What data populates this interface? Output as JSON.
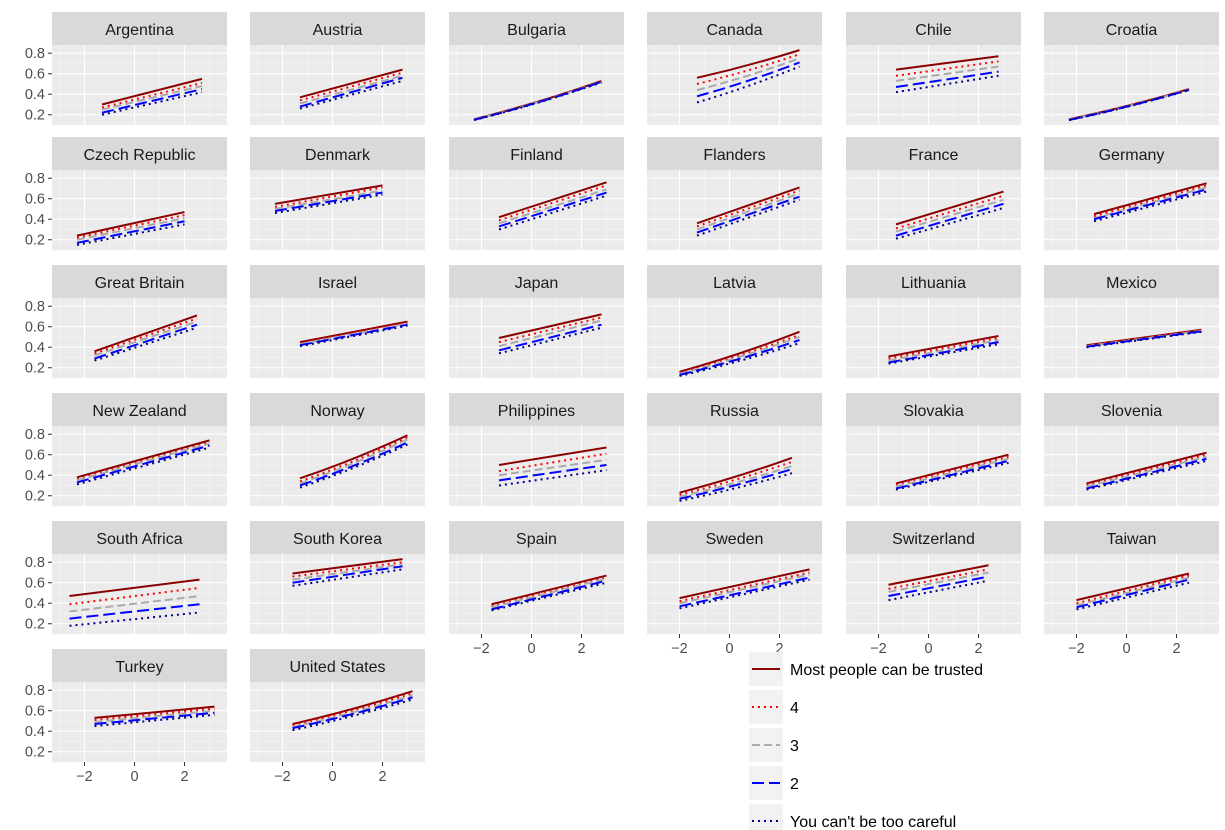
{
  "chart_data": {
    "type": "line",
    "facets": [
      "Argentina",
      "Austria",
      "Bulgaria",
      "Canada",
      "Chile",
      "Croatia",
      "Czech Republic",
      "Denmark",
      "Finland",
      "Flanders",
      "France",
      "Germany",
      "Great Britain",
      "Israel",
      "Japan",
      "Latvia",
      "Lithuania",
      "Mexico",
      "New Zealand",
      "Norway",
      "Philippines",
      "Russia",
      "Slovakia",
      "Slovenia",
      "South Africa",
      "South Korea",
      "Spain",
      "Sweden",
      "Switzerland",
      "Taiwan",
      "Turkey",
      "United States"
    ],
    "xlim": [
      -3.3,
      3.7
    ],
    "ylim": [
      0.1,
      0.88
    ],
    "x_ticks": [
      -2,
      0,
      2
    ],
    "x_tick_labels": [
      "−2",
      "0",
      "2"
    ],
    "y_ticks": [
      0.2,
      0.4,
      0.6,
      0.8
    ],
    "y_tick_labels": [
      "0.2",
      "0.4",
      "0.6",
      "0.8"
    ],
    "grid": true,
    "legend_position": "bottom-right",
    "series": [
      {
        "name": "Most people can be trusted",
        "color": "#8b0000",
        "dash": "solid"
      },
      {
        "name": "4",
        "color": "#ff0000",
        "dash": "dotted"
      },
      {
        "name": "3",
        "color": "#aaaaaa",
        "dash": "dashed"
      },
      {
        "name": "2",
        "color": "#0000ff",
        "dash": "longdash"
      },
      {
        "name": "You can't be too careful",
        "color": "#00008b",
        "dash": "dotted"
      }
    ],
    "panels": [
      {
        "facet": "Argentina",
        "x": [
          -1.3,
          2.7
        ],
        "lines": [
          [
            0.3,
            0.55
          ],
          [
            0.27,
            0.51
          ],
          [
            0.25,
            0.48
          ],
          [
            0.22,
            0.45
          ],
          [
            0.2,
            0.42
          ]
        ]
      },
      {
        "facet": "Austria",
        "x": [
          -1.3,
          2.8
        ],
        "lines": [
          [
            0.37,
            0.64
          ],
          [
            0.34,
            0.61
          ],
          [
            0.31,
            0.58
          ],
          [
            0.28,
            0.56
          ],
          [
            0.26,
            0.53
          ]
        ]
      },
      {
        "facet": "Bulgaria",
        "x": [
          -2.3,
          2.8
        ],
        "curve": true,
        "lines": [
          [
            0.155,
            0.53
          ],
          [
            0.153,
            0.525
          ],
          [
            0.152,
            0.522
          ],
          [
            0.15,
            0.52
          ],
          [
            0.148,
            0.515
          ]
        ]
      },
      {
        "facet": "Canada",
        "x": [
          -1.3,
          2.8
        ],
        "curve": true,
        "lines": [
          [
            0.56,
            0.83
          ],
          [
            0.5,
            0.79
          ],
          [
            0.44,
            0.75
          ],
          [
            0.38,
            0.71
          ],
          [
            0.32,
            0.67
          ]
        ]
      },
      {
        "facet": "Chile",
        "x": [
          -1.3,
          2.8
        ],
        "lines": [
          [
            0.64,
            0.77
          ],
          [
            0.58,
            0.72
          ],
          [
            0.53,
            0.67
          ],
          [
            0.47,
            0.62
          ],
          [
            0.42,
            0.58
          ]
        ]
      },
      {
        "facet": "Croatia",
        "x": [
          -2.3,
          2.5
        ],
        "curve": true,
        "lines": [
          [
            0.155,
            0.45
          ],
          [
            0.153,
            0.447
          ],
          [
            0.151,
            0.445
          ],
          [
            0.149,
            0.443
          ],
          [
            0.147,
            0.44
          ]
        ]
      },
      {
        "facet": "Czech Republic",
        "x": [
          -2.3,
          2.0
        ],
        "lines": [
          [
            0.24,
            0.47
          ],
          [
            0.22,
            0.44
          ],
          [
            0.2,
            0.41
          ],
          [
            0.17,
            0.38
          ],
          [
            0.15,
            0.35
          ]
        ]
      },
      {
        "facet": "Denmark",
        "x": [
          -2.3,
          2.0
        ],
        "lines": [
          [
            0.55,
            0.73
          ],
          [
            0.52,
            0.71
          ],
          [
            0.5,
            0.68
          ],
          [
            0.48,
            0.66
          ],
          [
            0.46,
            0.64
          ]
        ]
      },
      {
        "facet": "Finland",
        "x": [
          -1.3,
          3.0
        ],
        "lines": [
          [
            0.42,
            0.76
          ],
          [
            0.39,
            0.73
          ],
          [
            0.36,
            0.69
          ],
          [
            0.33,
            0.66
          ],
          [
            0.3,
            0.63
          ]
        ]
      },
      {
        "facet": "Flanders",
        "x": [
          -1.3,
          2.8
        ],
        "lines": [
          [
            0.36,
            0.71
          ],
          [
            0.33,
            0.68
          ],
          [
            0.3,
            0.65
          ],
          [
            0.27,
            0.62
          ],
          [
            0.24,
            0.59
          ]
        ]
      },
      {
        "facet": "France",
        "x": [
          -1.3,
          3.0
        ],
        "lines": [
          [
            0.35,
            0.67
          ],
          [
            0.31,
            0.63
          ],
          [
            0.28,
            0.59
          ],
          [
            0.24,
            0.55
          ],
          [
            0.21,
            0.51
          ]
        ]
      },
      {
        "facet": "Germany",
        "x": [
          -1.3,
          3.2
        ],
        "lines": [
          [
            0.45,
            0.75
          ],
          [
            0.43,
            0.73
          ],
          [
            0.41,
            0.71
          ],
          [
            0.4,
            0.69
          ],
          [
            0.38,
            0.67
          ]
        ]
      },
      {
        "facet": "Great Britain",
        "x": [
          -1.6,
          2.5
        ],
        "lines": [
          [
            0.36,
            0.71
          ],
          [
            0.34,
            0.68
          ],
          [
            0.32,
            0.65
          ],
          [
            0.29,
            0.62
          ],
          [
            0.27,
            0.59
          ]
        ]
      },
      {
        "facet": "Israel",
        "x": [
          -1.3,
          3.0
        ],
        "lines": [
          [
            0.45,
            0.65
          ],
          [
            0.44,
            0.64
          ],
          [
            0.43,
            0.63
          ],
          [
            0.42,
            0.62
          ],
          [
            0.41,
            0.61
          ]
        ]
      },
      {
        "facet": "Japan",
        "x": [
          -1.3,
          2.8
        ],
        "lines": [
          [
            0.49,
            0.72
          ],
          [
            0.45,
            0.69
          ],
          [
            0.41,
            0.66
          ],
          [
            0.37,
            0.62
          ],
          [
            0.34,
            0.59
          ]
        ]
      },
      {
        "facet": "Latvia",
        "x": [
          -2.0,
          2.8
        ],
        "curve": true,
        "lines": [
          [
            0.16,
            0.55
          ],
          [
            0.15,
            0.52
          ],
          [
            0.14,
            0.5
          ],
          [
            0.13,
            0.47
          ],
          [
            0.12,
            0.44
          ]
        ]
      },
      {
        "facet": "Lithuania",
        "x": [
          -1.6,
          2.8
        ],
        "lines": [
          [
            0.31,
            0.51
          ],
          [
            0.29,
            0.49
          ],
          [
            0.27,
            0.47
          ],
          [
            0.25,
            0.45
          ],
          [
            0.24,
            0.43
          ]
        ]
      },
      {
        "facet": "Mexico",
        "x": [
          -1.6,
          3.0
        ],
        "lines": [
          [
            0.42,
            0.57
          ],
          [
            0.415,
            0.565
          ],
          [
            0.41,
            0.56
          ],
          [
            0.405,
            0.555
          ],
          [
            0.4,
            0.55
          ]
        ]
      },
      {
        "facet": "New Zealand",
        "x": [
          -2.3,
          3.0
        ],
        "lines": [
          [
            0.38,
            0.74
          ],
          [
            0.36,
            0.72
          ],
          [
            0.35,
            0.71
          ],
          [
            0.33,
            0.69
          ],
          [
            0.31,
            0.67
          ]
        ]
      },
      {
        "facet": "Norway",
        "x": [
          -1.3,
          3.0
        ],
        "curve": true,
        "lines": [
          [
            0.37,
            0.79
          ],
          [
            0.34,
            0.77
          ],
          [
            0.32,
            0.75
          ],
          [
            0.3,
            0.72
          ],
          [
            0.28,
            0.7
          ]
        ]
      },
      {
        "facet": "Philippines",
        "x": [
          -1.3,
          3.0
        ],
        "lines": [
          [
            0.5,
            0.67
          ],
          [
            0.44,
            0.61
          ],
          [
            0.4,
            0.55
          ],
          [
            0.35,
            0.5
          ],
          [
            0.3,
            0.45
          ]
        ]
      },
      {
        "facet": "Russia",
        "x": [
          -2.0,
          2.5
        ],
        "curve": true,
        "lines": [
          [
            0.23,
            0.57
          ],
          [
            0.21,
            0.53
          ],
          [
            0.19,
            0.49
          ],
          [
            0.17,
            0.46
          ],
          [
            0.15,
            0.42
          ]
        ]
      },
      {
        "facet": "Slovakia",
        "x": [
          -1.3,
          3.2
        ],
        "lines": [
          [
            0.32,
            0.6
          ],
          [
            0.31,
            0.58
          ],
          [
            0.29,
            0.56
          ],
          [
            0.27,
            0.54
          ],
          [
            0.26,
            0.52
          ]
        ]
      },
      {
        "facet": "Slovenia",
        "x": [
          -1.6,
          3.2
        ],
        "lines": [
          [
            0.32,
            0.62
          ],
          [
            0.3,
            0.6
          ],
          [
            0.29,
            0.58
          ],
          [
            0.27,
            0.56
          ],
          [
            0.26,
            0.54
          ]
        ]
      },
      {
        "facet": "South Africa",
        "x": [
          -2.6,
          2.6
        ],
        "lines": [
          [
            0.47,
            0.63
          ],
          [
            0.39,
            0.55
          ],
          [
            0.32,
            0.47
          ],
          [
            0.25,
            0.39
          ],
          [
            0.18,
            0.31
          ]
        ]
      },
      {
        "facet": "South Korea",
        "x": [
          -1.6,
          2.8
        ],
        "lines": [
          [
            0.69,
            0.83
          ],
          [
            0.66,
            0.8
          ],
          [
            0.63,
            0.78
          ],
          [
            0.6,
            0.76
          ],
          [
            0.57,
            0.73
          ]
        ]
      },
      {
        "facet": "Spain",
        "x": [
          -1.6,
          3.0
        ],
        "lines": [
          [
            0.39,
            0.67
          ],
          [
            0.37,
            0.65
          ],
          [
            0.36,
            0.64
          ],
          [
            0.34,
            0.62
          ],
          [
            0.33,
            0.6
          ]
        ]
      },
      {
        "facet": "Sweden",
        "x": [
          -2.0,
          3.2
        ],
        "lines": [
          [
            0.45,
            0.73
          ],
          [
            0.42,
            0.7
          ],
          [
            0.4,
            0.68
          ],
          [
            0.37,
            0.65
          ],
          [
            0.35,
            0.63
          ]
        ]
      },
      {
        "facet": "Switzerland",
        "x": [
          -1.6,
          2.4
        ],
        "lines": [
          [
            0.58,
            0.77
          ],
          [
            0.54,
            0.73
          ],
          [
            0.51,
            0.7
          ],
          [
            0.47,
            0.66
          ],
          [
            0.43,
            0.62
          ]
        ]
      },
      {
        "facet": "Taiwan",
        "x": [
          -2.0,
          2.5
        ],
        "lines": [
          [
            0.43,
            0.69
          ],
          [
            0.4,
            0.67
          ],
          [
            0.38,
            0.65
          ],
          [
            0.36,
            0.63
          ],
          [
            0.34,
            0.6
          ]
        ]
      },
      {
        "facet": "Turkey",
        "x": [
          -1.6,
          3.2
        ],
        "lines": [
          [
            0.53,
            0.64
          ],
          [
            0.51,
            0.62
          ],
          [
            0.49,
            0.6
          ],
          [
            0.47,
            0.58
          ],
          [
            0.45,
            0.56
          ]
        ]
      },
      {
        "facet": "United States",
        "x": [
          -1.6,
          3.2
        ],
        "curve": true,
        "lines": [
          [
            0.47,
            0.79
          ],
          [
            0.46,
            0.77
          ],
          [
            0.44,
            0.75
          ],
          [
            0.43,
            0.73
          ],
          [
            0.41,
            0.71
          ]
        ]
      }
    ]
  }
}
